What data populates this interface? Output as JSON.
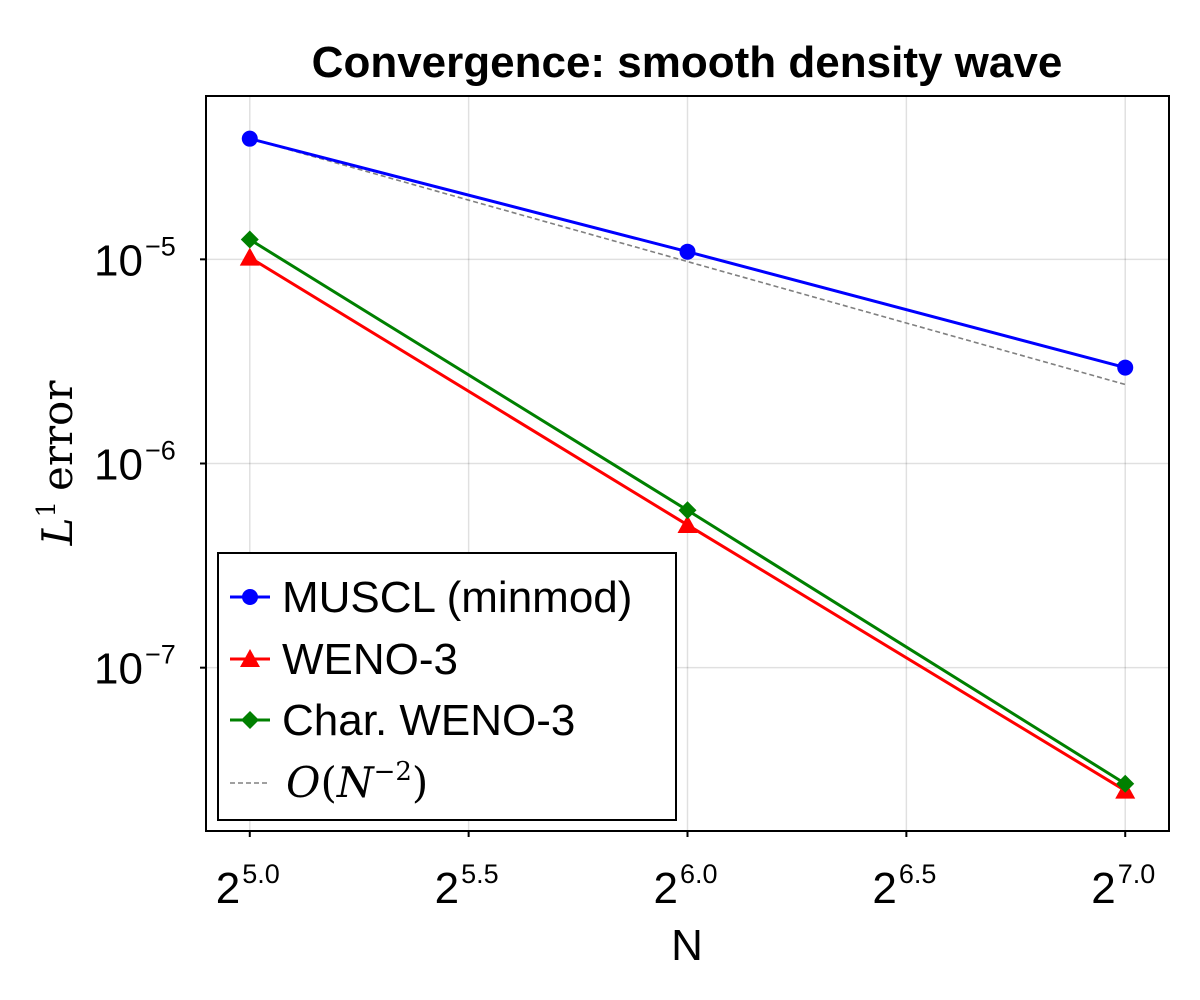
{
  "chart_data": {
    "type": "line",
    "title": "Convergence: smooth density wave",
    "xlabel": "N",
    "ylabel": "L^1 error",
    "ylabel_parts": {
      "symbol": "L",
      "superscript": "1",
      "text": "error"
    },
    "xscale": "log2",
    "yscale": "log10",
    "x": [
      32,
      64,
      128
    ],
    "xlim_log2": [
      4.9,
      7.1
    ],
    "ylim_log10": [
      -7.8,
      -4.2
    ],
    "xticks": [
      {
        "value_log2": 5.0,
        "base": "2",
        "exp": "5.0"
      },
      {
        "value_log2": 5.5,
        "base": "2",
        "exp": "5.5"
      },
      {
        "value_log2": 6.0,
        "base": "2",
        "exp": "6.0"
      },
      {
        "value_log2": 6.5,
        "base": "2",
        "exp": "6.5"
      },
      {
        "value_log2": 7.0,
        "base": "2",
        "exp": "7.0"
      }
    ],
    "yticks": [
      {
        "value_log10": -5,
        "base": "10",
        "exp": "−5"
      },
      {
        "value_log10": -6,
        "base": "10",
        "exp": "−6"
      },
      {
        "value_log10": -7,
        "base": "10",
        "exp": "−7"
      }
    ],
    "grid": true,
    "legend_position": "bottom-left",
    "series": [
      {
        "name": "MUSCL (minmod)",
        "color": "#0000ff",
        "marker": "circle",
        "style": "solid",
        "values": [
          3.9e-05,
          1.09e-05,
          2.95e-06
        ]
      },
      {
        "name": "WENO-3",
        "color": "#ff0000",
        "marker": "triangle",
        "style": "solid",
        "values": [
          1.02e-05,
          5e-07,
          2.5e-08
        ]
      },
      {
        "name": "Char. WENO-3",
        "color": "#008000",
        "marker": "diamond",
        "style": "solid",
        "values": [
          1.25e-05,
          5.9e-07,
          2.7e-08
        ]
      },
      {
        "name": "O(N^-2)",
        "label_parts": {
          "o": "O",
          "open": "(",
          "n": "N",
          "exp": "−2",
          "close": ")"
        },
        "color": "#808080",
        "marker": "none",
        "style": "dashed",
        "values": [
          3.9e-05,
          9.75e-06,
          2.4375e-06
        ]
      }
    ]
  }
}
